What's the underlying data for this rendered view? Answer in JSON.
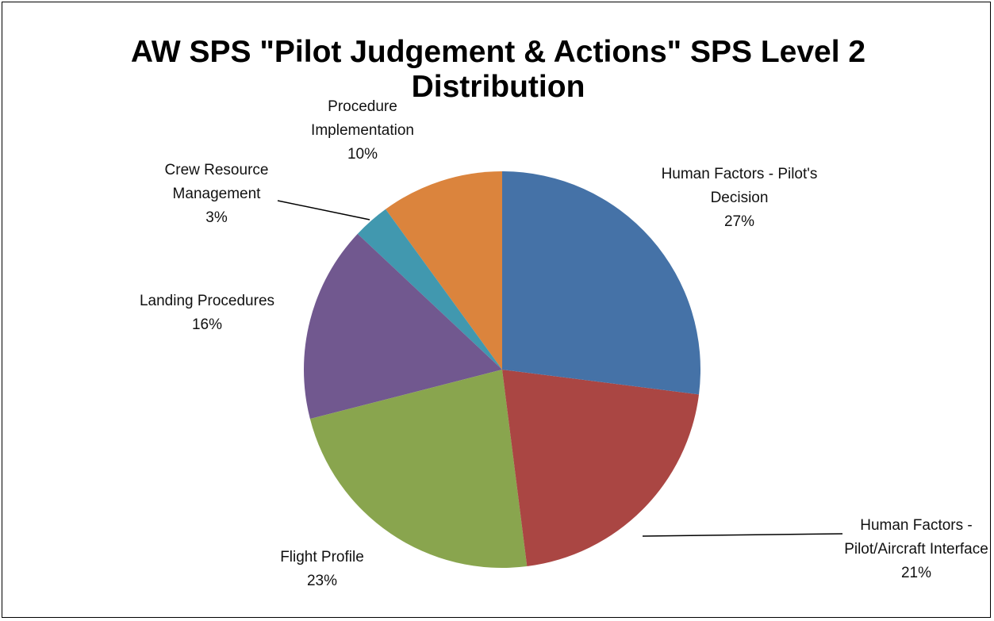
{
  "chart_data": {
    "type": "pie",
    "title": "AW SPS \"Pilot Judgement & Actions\" SPS Level 2 Distribution",
    "categories": [
      "Human Factors - Pilot's Decision",
      "Human Factors - Pilot/Aircraft Interface",
      "Flight Profile",
      "Landing Procedures",
      "Crew Resource Management",
      "Procedure Implementation"
    ],
    "values": [
      27,
      21,
      23,
      16,
      3,
      10
    ],
    "value_labels": [
      "27%",
      "21%",
      "23%",
      "16%",
      "3%",
      "10%"
    ],
    "colors": [
      "#4572a7",
      "#aa4643",
      "#89a54e",
      "#71588f",
      "#4198af",
      "#db843d"
    ]
  }
}
